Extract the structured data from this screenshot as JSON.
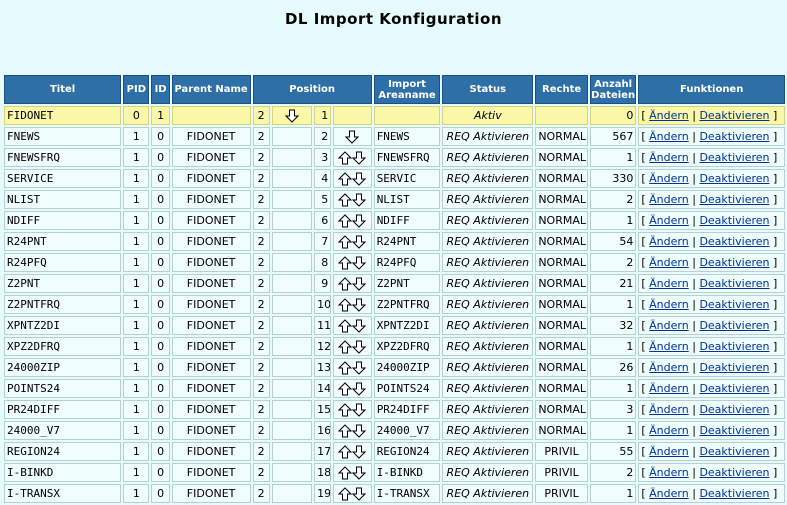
{
  "title": "DL Import Konfiguration",
  "columns": {
    "titel": "Titel",
    "pid": "PID",
    "id": "ID",
    "parent": "Parent Name",
    "position": "Position",
    "import_area": "Import Areaname",
    "status": "Status",
    "rechte": "Rechte",
    "anzahl": "Anzahl Dateien",
    "funktionen": "Funktionen"
  },
  "links": {
    "open": "[",
    "sep": "|",
    "close": "]"
  },
  "icons": {
    "up": "arrow-up-icon",
    "down": "arrow-down-icon"
  },
  "colors": {
    "header": "#2e6fa8",
    "active_row": "#fbf7a8",
    "row": "#effdfd",
    "link": "#00329a"
  },
  "rows": [
    {
      "titel": "FIDONET",
      "pid": "0",
      "id": "1",
      "parent": "",
      "pos_a": "2",
      "pos_b": "1",
      "area": "",
      "status": "Aktiv",
      "rechte": "",
      "anzahl": "0",
      "edit": "Ändern",
      "toggle": "Deaktivieren",
      "active": true,
      "up": false,
      "down": true
    },
    {
      "titel": "FNEWS",
      "pid": "1",
      "id": "0",
      "parent": "FIDONET",
      "pos_a": "2",
      "pos_b": "2",
      "area": "FNEWS",
      "status": "REQ Aktivieren",
      "rechte": "NORMAL",
      "anzahl": "567",
      "edit": "Ändern",
      "toggle": "Deaktivieren",
      "up": false,
      "down": true
    },
    {
      "titel": "FNEWSFRQ",
      "pid": "1",
      "id": "0",
      "parent": "FIDONET",
      "pos_a": "2",
      "pos_b": "3",
      "area": "FNEWSFRQ",
      "status": "REQ Aktivieren",
      "rechte": "NORMAL",
      "anzahl": "1",
      "edit": "Ändern",
      "toggle": "Deaktivieren",
      "up": true,
      "down": true
    },
    {
      "titel": "SERVICE",
      "pid": "1",
      "id": "0",
      "parent": "FIDONET",
      "pos_a": "2",
      "pos_b": "4",
      "area": "SERVIC",
      "status": "REQ Aktivieren",
      "rechte": "NORMAL",
      "anzahl": "330",
      "edit": "Ändern",
      "toggle": "Deaktivieren",
      "up": true,
      "down": true
    },
    {
      "titel": "NLIST",
      "pid": "1",
      "id": "0",
      "parent": "FIDONET",
      "pos_a": "2",
      "pos_b": "5",
      "area": "NLIST",
      "status": "REQ Aktivieren",
      "rechte": "NORMAL",
      "anzahl": "2",
      "edit": "Ändern",
      "toggle": "Deaktivieren",
      "up": true,
      "down": true
    },
    {
      "titel": "NDIFF",
      "pid": "1",
      "id": "0",
      "parent": "FIDONET",
      "pos_a": "2",
      "pos_b": "6",
      "area": "NDIFF",
      "status": "REQ Aktivieren",
      "rechte": "NORMAL",
      "anzahl": "1",
      "edit": "Ändern",
      "toggle": "Deaktivieren",
      "up": true,
      "down": true
    },
    {
      "titel": "R24PNT",
      "pid": "1",
      "id": "0",
      "parent": "FIDONET",
      "pos_a": "2",
      "pos_b": "7",
      "area": "R24PNT",
      "status": "REQ Aktivieren",
      "rechte": "NORMAL",
      "anzahl": "54",
      "edit": "Ändern",
      "toggle": "Deaktivieren",
      "up": true,
      "down": true
    },
    {
      "titel": "R24PFQ",
      "pid": "1",
      "id": "0",
      "parent": "FIDONET",
      "pos_a": "2",
      "pos_b": "8",
      "area": "R24PFQ",
      "status": "REQ Aktivieren",
      "rechte": "NORMAL",
      "anzahl": "2",
      "edit": "Ändern",
      "toggle": "Deaktivieren",
      "up": true,
      "down": true
    },
    {
      "titel": "Z2PNT",
      "pid": "1",
      "id": "0",
      "parent": "FIDONET",
      "pos_a": "2",
      "pos_b": "9",
      "area": "Z2PNT",
      "status": "REQ Aktivieren",
      "rechte": "NORMAL",
      "anzahl": "21",
      "edit": "Ändern",
      "toggle": "Deaktivieren",
      "up": true,
      "down": true
    },
    {
      "titel": "Z2PNTFRQ",
      "pid": "1",
      "id": "0",
      "parent": "FIDONET",
      "pos_a": "2",
      "pos_b": "10",
      "area": "Z2PNTFRQ",
      "status": "REQ Aktivieren",
      "rechte": "NORMAL",
      "anzahl": "1",
      "edit": "Ändern",
      "toggle": "Deaktivieren",
      "up": true,
      "down": true
    },
    {
      "titel": "XPNTZ2DI",
      "pid": "1",
      "id": "0",
      "parent": "FIDONET",
      "pos_a": "2",
      "pos_b": "11",
      "area": "XPNTZ2DI",
      "status": "REQ Aktivieren",
      "rechte": "NORMAL",
      "anzahl": "32",
      "edit": "Ändern",
      "toggle": "Deaktivieren",
      "up": true,
      "down": true
    },
    {
      "titel": "XPZ2DFRQ",
      "pid": "1",
      "id": "0",
      "parent": "FIDONET",
      "pos_a": "2",
      "pos_b": "12",
      "area": "XPZ2DFRQ",
      "status": "REQ Aktivieren",
      "rechte": "NORMAL",
      "anzahl": "1",
      "edit": "Ändern",
      "toggle": "Deaktivieren",
      "up": true,
      "down": true
    },
    {
      "titel": "24000ZIP",
      "pid": "1",
      "id": "0",
      "parent": "FIDONET",
      "pos_a": "2",
      "pos_b": "13",
      "area": "24000ZIP",
      "status": "REQ Aktivieren",
      "rechte": "NORMAL",
      "anzahl": "26",
      "edit": "Ändern",
      "toggle": "Deaktivieren",
      "up": true,
      "down": true
    },
    {
      "titel": "POINTS24",
      "pid": "1",
      "id": "0",
      "parent": "FIDONET",
      "pos_a": "2",
      "pos_b": "14",
      "area": "POINTS24",
      "status": "REQ Aktivieren",
      "rechte": "NORMAL",
      "anzahl": "1",
      "edit": "Ändern",
      "toggle": "Deaktivieren",
      "up": true,
      "down": true
    },
    {
      "titel": "PR24DIFF",
      "pid": "1",
      "id": "0",
      "parent": "FIDONET",
      "pos_a": "2",
      "pos_b": "15",
      "area": "PR24DIFF",
      "status": "REQ Aktivieren",
      "rechte": "NORMAL",
      "anzahl": "3",
      "edit": "Ändern",
      "toggle": "Deaktivieren",
      "up": true,
      "down": true
    },
    {
      "titel": "24000_V7",
      "pid": "1",
      "id": "0",
      "parent": "FIDONET",
      "pos_a": "2",
      "pos_b": "16",
      "area": "24000_V7",
      "status": "REQ Aktivieren",
      "rechte": "NORMAL",
      "anzahl": "1",
      "edit": "Ändern",
      "toggle": "Deaktivieren",
      "up": true,
      "down": true
    },
    {
      "titel": "REGION24",
      "pid": "1",
      "id": "0",
      "parent": "FIDONET",
      "pos_a": "2",
      "pos_b": "17",
      "area": "REGION24",
      "status": "REQ Aktivieren",
      "rechte": "PRIVIL",
      "anzahl": "55",
      "edit": "Ändern",
      "toggle": "Deaktivieren",
      "up": true,
      "down": true
    },
    {
      "titel": "I-BINKD",
      "pid": "1",
      "id": "0",
      "parent": "FIDONET",
      "pos_a": "2",
      "pos_b": "18",
      "area": "I-BINKD",
      "status": "REQ Aktivieren",
      "rechte": "PRIVIL",
      "anzahl": "2",
      "edit": "Ändern",
      "toggle": "Deaktivieren",
      "up": true,
      "down": true
    },
    {
      "titel": "I-TRANSX",
      "pid": "1",
      "id": "0",
      "parent": "FIDONET",
      "pos_a": "2",
      "pos_b": "19",
      "area": "I-TRANSX",
      "status": "REQ Aktivieren",
      "rechte": "PRIVIL",
      "anzahl": "1",
      "edit": "Ändern",
      "toggle": "Deaktivieren",
      "up": true,
      "down": true
    }
  ]
}
